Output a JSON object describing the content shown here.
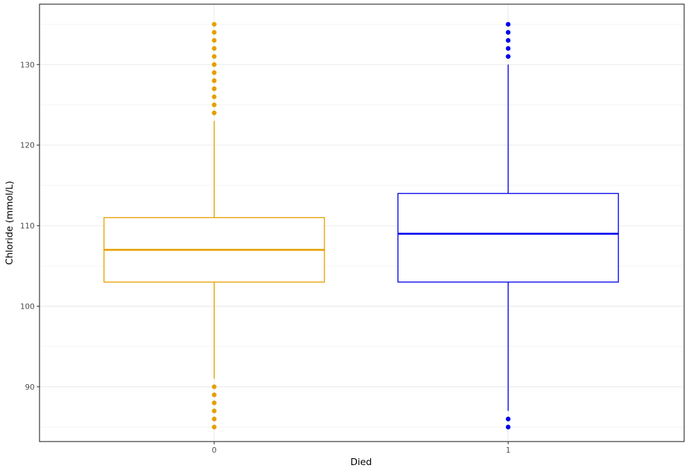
{
  "chart_data": {
    "type": "boxplot",
    "xlabel": "Died",
    "ylabel": "Chloride (mmol/L)",
    "ylim": [
      83.2,
      137.5
    ],
    "yticks": [
      90,
      100,
      110,
      120,
      130
    ],
    "grid": true,
    "legend": "none",
    "categories": [
      "0",
      "1"
    ],
    "boxes": [
      {
        "category": "0",
        "color": "#E69F00",
        "whisker_low": 91,
        "q1": 103,
        "median": 107,
        "q3": 111,
        "whisker_high": 123,
        "outliers": [
          85,
          86,
          87,
          88,
          89,
          90,
          124,
          125,
          126,
          127,
          128,
          129,
          130,
          131,
          132,
          133,
          134,
          135
        ]
      },
      {
        "category": "1",
        "color": "#0000EE",
        "whisker_low": 87,
        "q1": 103,
        "median": 109,
        "q3": 114,
        "whisker_high": 130,
        "outliers": [
          85,
          86,
          131,
          132,
          133,
          134,
          135
        ]
      }
    ]
  }
}
